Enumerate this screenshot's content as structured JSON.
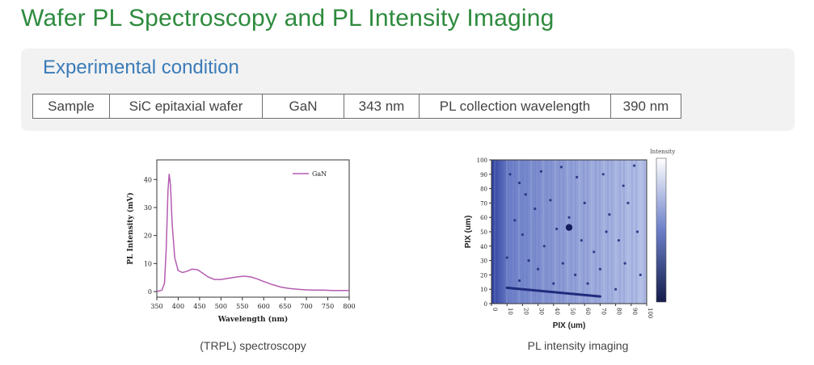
{
  "page": {
    "title": "Wafer PL Spectroscopy and PL Intensity Imaging"
  },
  "conditions": {
    "title": "Experimental condition",
    "cells": [
      "Sample",
      "SiC epitaxial wafer",
      "GaN",
      "343 nm",
      "PL collection wavelength",
      "390 nm"
    ]
  },
  "colors": {
    "title_green": "#2e8b3e",
    "subtitle_blue": "#3b7bb8",
    "series_purple": "#b45cb0",
    "map_blue": "#3a4fae"
  },
  "figures": [
    {
      "caption": "(TRPL) spectroscopy"
    },
    {
      "caption": "PL intensity imaging"
    }
  ],
  "chart_data": [
    {
      "type": "line",
      "xlabel": "Wavelength (nm)",
      "ylabel": "PL Intensity (mV)",
      "xlim": [
        350,
        800
      ],
      "ylim": [
        -2,
        47
      ],
      "xticks": [
        "350",
        "400",
        "450",
        "500",
        "550",
        "600",
        "650",
        "700",
        "750",
        "800"
      ],
      "yticks": [
        "0",
        "10",
        "20",
        "30",
        "40"
      ],
      "legend": "top-right",
      "series": [
        {
          "name": "GaN",
          "x": [
            350,
            362,
            368,
            372,
            376,
            379,
            382,
            386,
            392,
            400,
            410,
            420,
            432,
            445,
            458,
            470,
            485,
            500,
            520,
            540,
            555,
            570,
            585,
            600,
            620,
            640,
            660,
            680,
            700,
            720,
            740,
            760,
            780,
            800
          ],
          "y": [
            0,
            0.5,
            3,
            15,
            36,
            42,
            38,
            24,
            12,
            7.5,
            6.8,
            7.2,
            8,
            7.8,
            6.5,
            5.2,
            4.3,
            4.3,
            4.8,
            5.3,
            5.5,
            5.2,
            4.5,
            3.6,
            2.5,
            1.6,
            1.1,
            0.8,
            0.6,
            0.5,
            0.5,
            0.4,
            0.4,
            0.4
          ]
        }
      ]
    },
    {
      "type": "heatmap",
      "xlabel": "PIX (um)",
      "ylabel": "PIX (um)",
      "colorbar_label": "Intensity",
      "xlim": [
        0,
        100
      ],
      "ylim": [
        0,
        100
      ],
      "xticks": [
        "0",
        "10",
        "20",
        "30",
        "40",
        "50",
        "60",
        "70",
        "80",
        "90",
        "100"
      ],
      "yticks": [
        "0",
        "10",
        "20",
        "30",
        "40",
        "50",
        "60",
        "70",
        "80",
        "90",
        "100"
      ]
    }
  ]
}
